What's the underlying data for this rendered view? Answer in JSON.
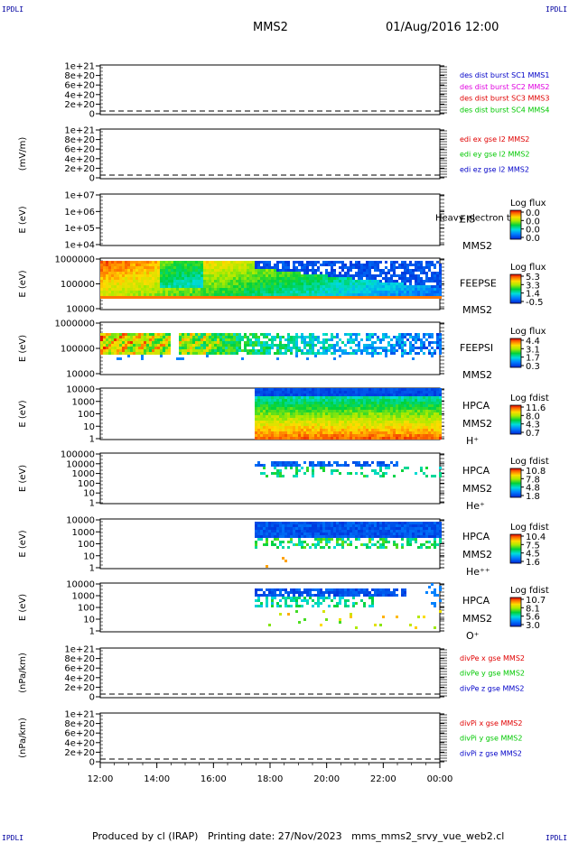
{
  "corners": {
    "tl": "IPDLI",
    "tr": "IPDLI",
    "bl": "IPDLI",
    "br": "IPDLI"
  },
  "header": {
    "spacecraft": "MMS2",
    "datetime": "01/Aug/2016 12:00"
  },
  "footer": {
    "text": "Produced by cl (IRAP)   Printing date: 27/Nov/2023   mms_mms2_srvy_vue_web2.cl"
  },
  "colors": {
    "red": "#e00000",
    "magenta": "#e000e0",
    "green": "#00c800",
    "blue": "#0000c8",
    "dash": "#000000"
  },
  "chart_data": {
    "type": "multi-panel time series",
    "x_ticks": [
      "12:00",
      "14:00",
      "16:00",
      "18:00",
      "20:00",
      "22:00",
      "00:00"
    ],
    "x_range_hours": [
      12,
      24
    ],
    "panels": [
      {
        "id": "p1",
        "type": "line",
        "ylabel": "",
        "ticks": [
          "1e+21",
          "8e+20",
          "6e+20",
          "4e+20",
          "2e+20",
          "0"
        ],
        "ylim": [
          0,
          1e+21
        ],
        "legend": [
          {
            "text": "des dist burst SC1 MMS1",
            "color": "blue"
          },
          {
            "text": "des dist burst SC2 MMS2",
            "color": "magenta"
          },
          {
            "text": "des dist burst SC3 MMS3",
            "color": "red"
          },
          {
            "text": "des dist burst SC4 MMS4",
            "color": "green"
          }
        ],
        "series": []
      },
      {
        "id": "p2",
        "type": "line",
        "ylabel": "(mV/m)",
        "ticks": [
          "1e+21",
          "8e+20",
          "6e+20",
          "4e+20",
          "2e+20",
          "0"
        ],
        "ylim": [
          0,
          1e+21
        ],
        "legend": [
          {
            "text": "edi ex gse l2 MMS2",
            "color": "red"
          },
          {
            "text": "edi ey gse l2 MMS2",
            "color": "green"
          },
          {
            "text": "edi ez gse l2 MMS2",
            "color": "blue"
          }
        ],
        "series": []
      },
      {
        "id": "p3",
        "type": "spectrogram",
        "ylabel": "E (eV)",
        "ticks": [
          "1e+07",
          "1e+06",
          "1e+05",
          "1e+04"
        ],
        "instrument": "EIS",
        "note": "Heavy electron to",
        "sc": "MMS2",
        "species": "",
        "cbar_title": "Log flux",
        "cbar_ticks": [
          "0.0",
          "0.0",
          "0.0",
          "0.0"
        ]
      },
      {
        "id": "p4",
        "type": "spectrogram",
        "ylabel": "E (eV)",
        "ticks": [
          "1000000",
          "100000",
          "10000"
        ],
        "instrument": "FEEPSE",
        "note": "",
        "sc": "MMS2",
        "species": "",
        "cbar_title": "Log flux",
        "cbar_ticks": [
          "5.3",
          "3.3",
          "1.4",
          "-0.5"
        ]
      },
      {
        "id": "p5",
        "type": "spectrogram",
        "ylabel": "E (eV)",
        "ticks": [
          "1000000",
          "100000",
          "10000"
        ],
        "instrument": "FEEPSI",
        "note": "",
        "sc": "MMS2",
        "species": "",
        "cbar_title": "Log flux",
        "cbar_ticks": [
          "4.4",
          "3.1",
          "1.7",
          "0.3"
        ]
      },
      {
        "id": "p6",
        "type": "spectrogram",
        "ylabel": "E (eV)",
        "ticks": [
          "10000",
          "1000",
          "100",
          "10",
          "1"
        ],
        "instrument": "HPCA",
        "note": "",
        "sc": "MMS2",
        "species": "H⁺",
        "cbar_title": "Log fdist",
        "cbar_ticks": [
          "11.6",
          "8.0",
          "4.3",
          "0.7"
        ]
      },
      {
        "id": "p7",
        "type": "spectrogram",
        "ylabel": "E (eV)",
        "ticks": [
          "100000",
          "10000",
          "1000",
          "100",
          "10",
          "1"
        ],
        "instrument": "HPCA",
        "note": "",
        "sc": "MMS2",
        "species": "He⁺",
        "cbar_title": "Log fdist",
        "cbar_ticks": [
          "10.8",
          "7.8",
          "4.8",
          "1.8"
        ]
      },
      {
        "id": "p8",
        "type": "spectrogram",
        "ylabel": "E (eV)",
        "ticks": [
          "10000",
          "1000",
          "100",
          "10",
          "1"
        ],
        "instrument": "HPCA",
        "note": "",
        "sc": "MMS2",
        "species": "He⁺⁺",
        "cbar_title": "Log fdist",
        "cbar_ticks": [
          "10.4",
          "7.5",
          "4.5",
          "1.6"
        ]
      },
      {
        "id": "p9",
        "type": "spectrogram",
        "ylabel": "E (eV)",
        "ticks": [
          "10000",
          "1000",
          "100",
          "10",
          "1"
        ],
        "instrument": "HPCA",
        "note": "",
        "sc": "MMS2",
        "species": "O⁺",
        "cbar_title": "Log fdist",
        "cbar_ticks": [
          "10.7",
          "8.1",
          "5.6",
          "3.0"
        ]
      },
      {
        "id": "p10",
        "type": "line",
        "ylabel": "(nPa/km)",
        "ticks": [
          "1e+21",
          "8e+20",
          "6e+20",
          "4e+20",
          "2e+20",
          "0"
        ],
        "ylim": [
          0,
          1e+21
        ],
        "legend": [
          {
            "text": "divPe x gse MMS2",
            "color": "red"
          },
          {
            "text": "divPe y gse MMS2",
            "color": "green"
          },
          {
            "text": "divPe z gse MMS2",
            "color": "blue"
          }
        ],
        "series": []
      },
      {
        "id": "p11",
        "type": "line",
        "ylabel": "(nPa/km)",
        "ticks": [
          "1e+21",
          "8e+20",
          "6e+20",
          "4e+20",
          "2e+20",
          "0"
        ],
        "ylim": [
          0,
          1e+21
        ],
        "legend": [
          {
            "text": "divPi x gse MMS2",
            "color": "red"
          },
          {
            "text": "divPi y gse MMS2",
            "color": "green"
          },
          {
            "text": "divPi z gse MMS2",
            "color": "blue"
          }
        ],
        "series": []
      }
    ]
  }
}
